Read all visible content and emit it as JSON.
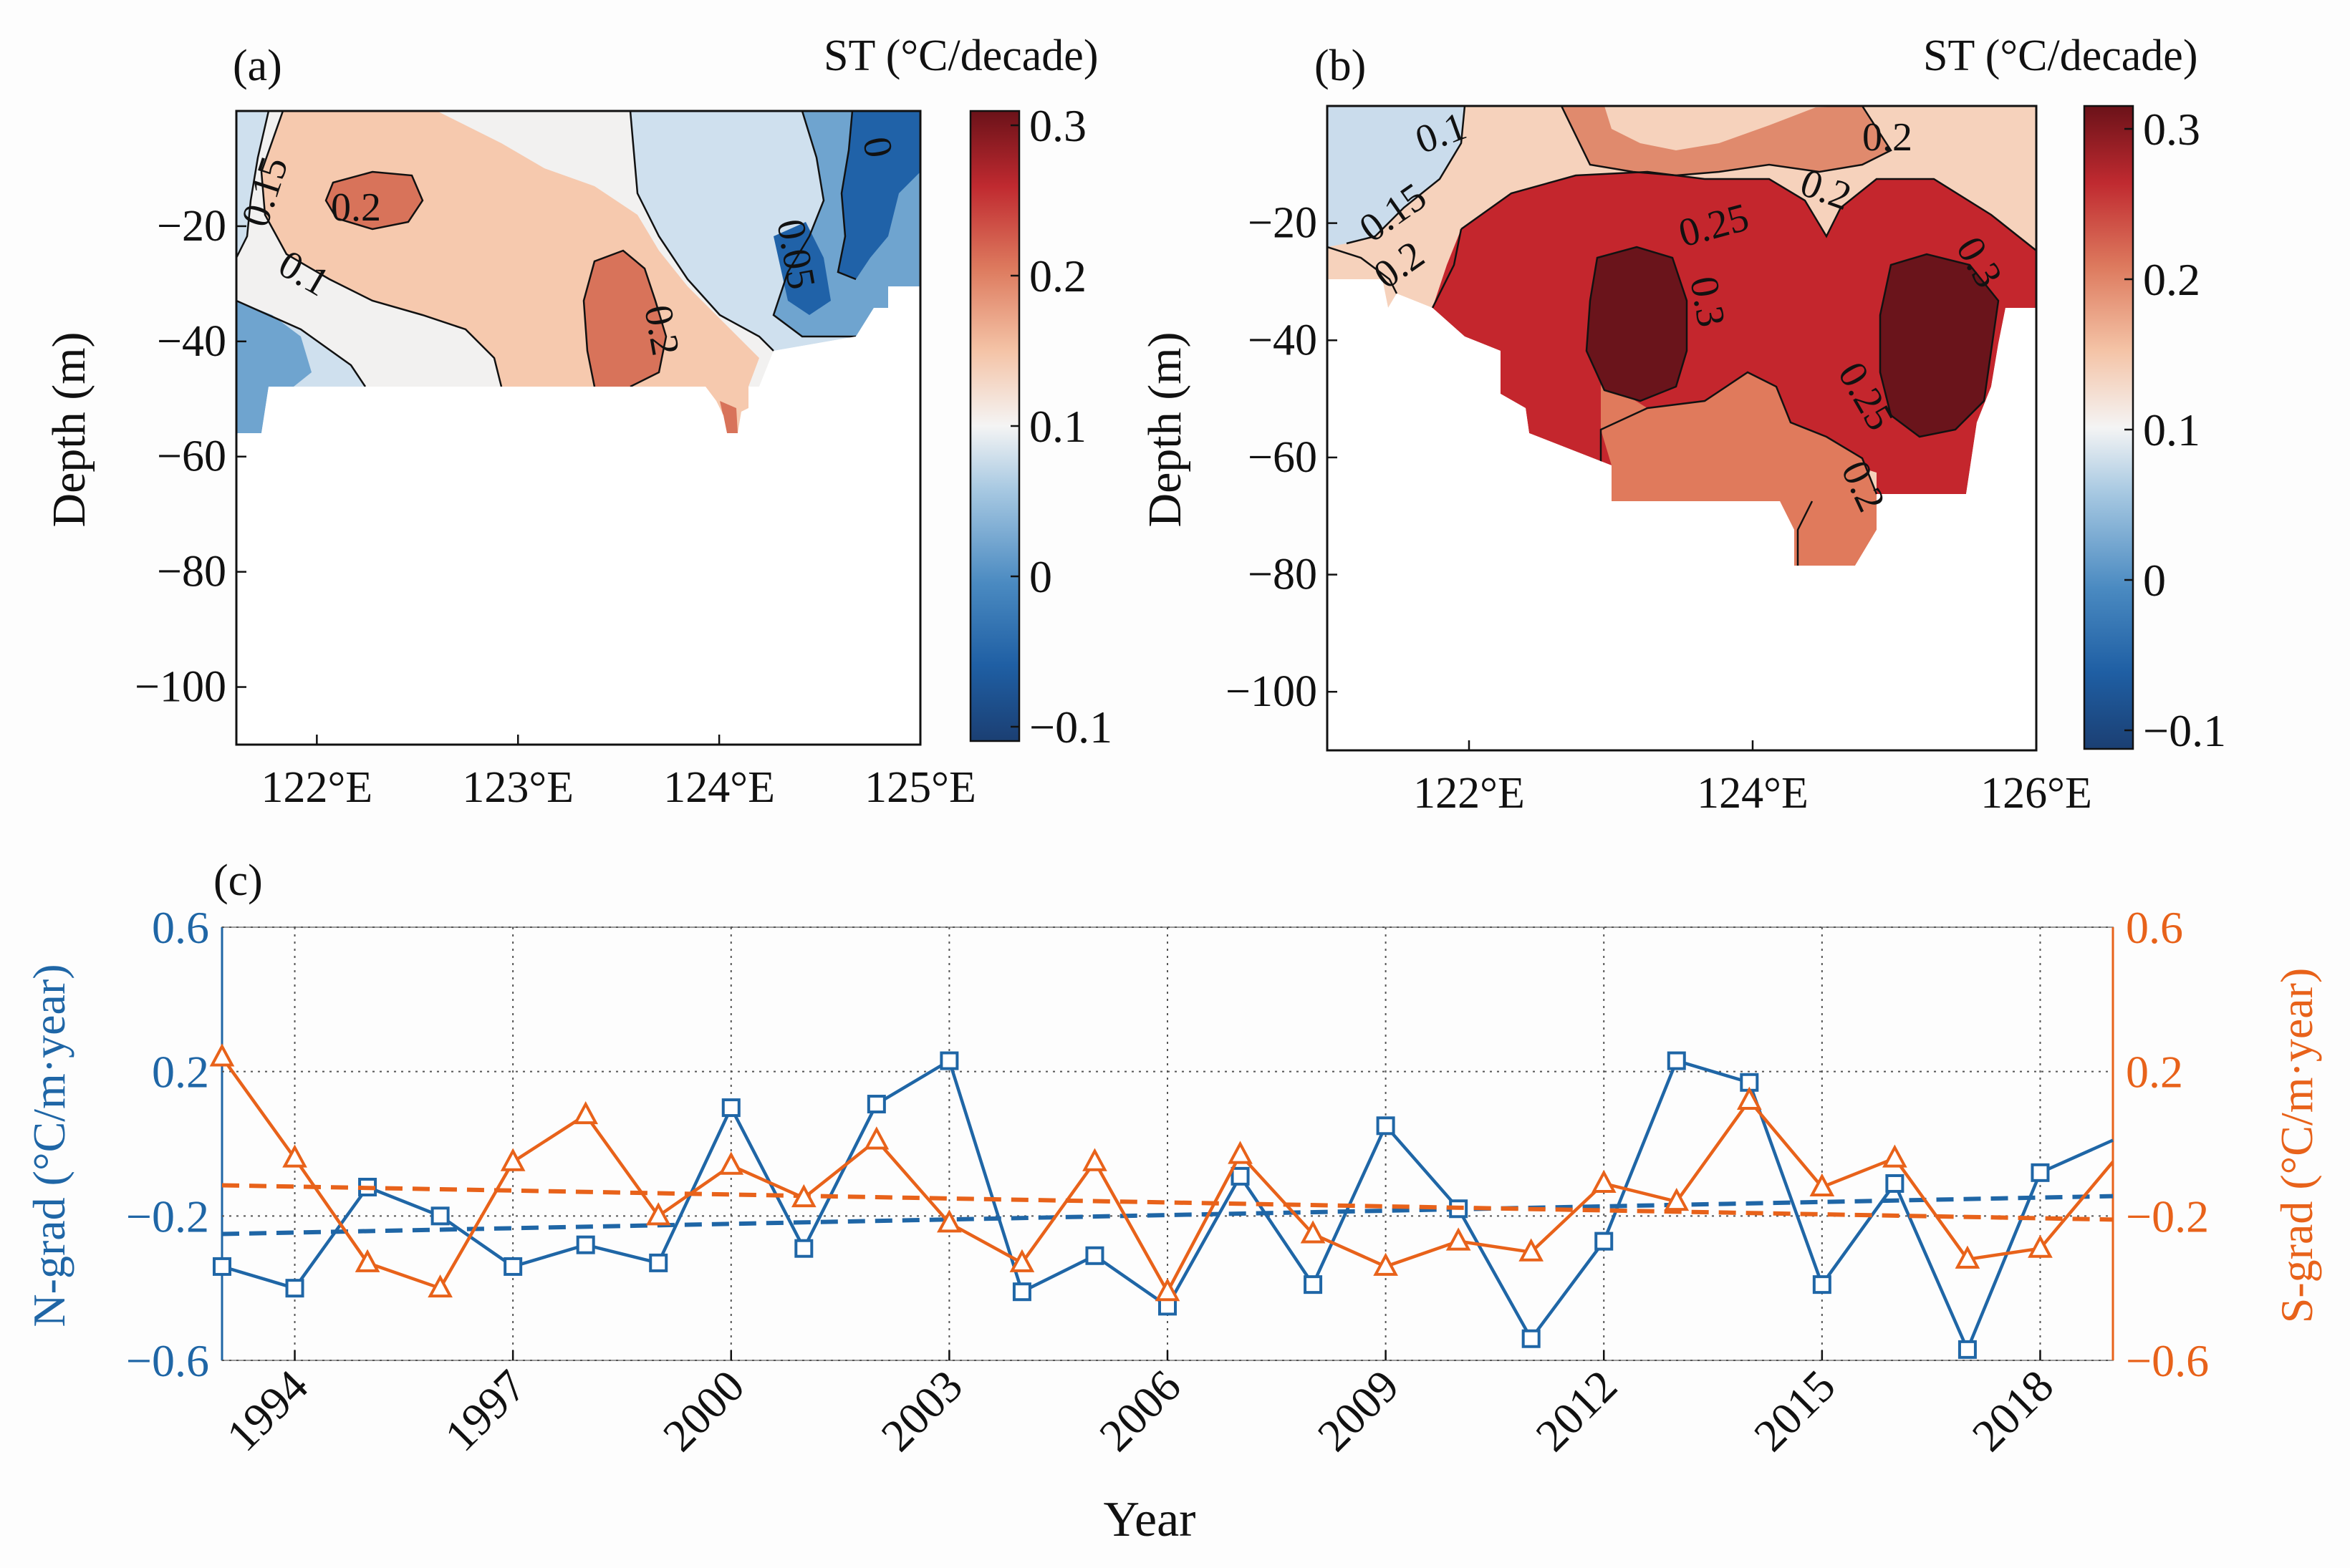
{
  "chart_data": [
    {
      "type": "heatmap",
      "panel_label": "(a)",
      "colorbar_label": "ST (°C/decade)",
      "colorbar_ticks": [
        "0.3",
        "0.2",
        "0.1",
        "0",
        "−0.1"
      ],
      "colorbar_range": [
        -0.1,
        0.3
      ],
      "ylabel": "Depth (m)",
      "ylim": [
        -110,
        0
      ],
      "yticks": [
        {
          "v": -20,
          "label": "−20"
        },
        {
          "v": -40,
          "label": "−40"
        },
        {
          "v": -60,
          "label": "−60"
        },
        {
          "v": -80,
          "label": "−80"
        },
        {
          "v": -100,
          "label": "−100"
        }
      ],
      "xlim": [
        121.6,
        125.0
      ],
      "xticks": [
        {
          "v": 122,
          "label": "122°E"
        },
        {
          "v": 123,
          "label": "123°E"
        },
        {
          "v": 124,
          "label": "124°E"
        },
        {
          "v": 125,
          "label": "125°E"
        }
      ],
      "contour_labels": [
        "0.15",
        "0.2",
        "0.1",
        "0.2",
        "0",
        "0.05"
      ]
    },
    {
      "type": "heatmap",
      "panel_label": "(b)",
      "colorbar_label": "ST (°C/decade)",
      "colorbar_ticks": [
        "0.3",
        "0.2",
        "0.1",
        "0",
        "−0.1"
      ],
      "colorbar_range": [
        -0.1,
        0.3
      ],
      "ylabel": "Depth (m)",
      "ylim": [
        -110,
        0
      ],
      "yticks": [
        {
          "v": -20,
          "label": "−20"
        },
        {
          "v": -40,
          "label": "−40"
        },
        {
          "v": -60,
          "label": "−60"
        },
        {
          "v": -80,
          "label": "−80"
        },
        {
          "v": -100,
          "label": "−100"
        }
      ],
      "xlim": [
        121.0,
        126.0
      ],
      "xticks": [
        {
          "v": 122,
          "label": "122°E"
        },
        {
          "v": 124,
          "label": "124°E"
        },
        {
          "v": 126,
          "label": "126°E"
        }
      ],
      "contour_labels": [
        "0.1",
        "0.15",
        "0.2",
        "0.2",
        "0.25",
        "0.2",
        "0.3",
        "0.3",
        "0.25",
        "0.2"
      ]
    },
    {
      "type": "line",
      "panel_label": "(c)",
      "xlabel": "Year",
      "ylabel_left": "N-grad (°C/m·year)",
      "ylabel_right": "S-grad (°C/m·year)",
      "xlim": [
        1993,
        2019
      ],
      "ylim": [
        -0.6,
        0.6
      ],
      "x_ticks": [
        "1994",
        "1997",
        "2000",
        "2003",
        "2006",
        "2009",
        "2012",
        "2015",
        "2018"
      ],
      "y_ticks_left": [
        "0.6",
        "0.2",
        "−0.2",
        "−0.6"
      ],
      "y_ticks_right": [
        "0.6",
        "0.2",
        "−0.2",
        "−0.6"
      ],
      "grid": true,
      "x": [
        1993,
        1994,
        1995,
        1996,
        1997,
        1998,
        1999,
        2000,
        2001,
        2002,
        2003,
        2004,
        2005,
        2006,
        2007,
        2008,
        2009,
        2010,
        2011,
        2012,
        2013,
        2014,
        2015,
        2016,
        2017,
        2018,
        2019
      ],
      "series": [
        {
          "name": "N-grad",
          "color": "#1f66a6",
          "marker": "square",
          "values": [
            -0.34,
            -0.4,
            -0.12,
            -0.2,
            -0.34,
            -0.28,
            -0.33,
            0.1,
            -0.29,
            0.11,
            0.23,
            -0.41,
            -0.31,
            -0.45,
            -0.09,
            -0.39,
            0.05,
            -0.18,
            -0.54,
            -0.27,
            0.23,
            0.17,
            -0.39,
            -0.11,
            -0.57,
            -0.08,
            0.01
          ],
          "trend": [
            -0.25,
            -0.145
          ]
        },
        {
          "name": "S-grad",
          "color": "#e8621a",
          "marker": "triangle",
          "values": [
            0.24,
            -0.04,
            -0.33,
            -0.4,
            -0.05,
            0.08,
            -0.2,
            -0.06,
            -0.15,
            0.01,
            -0.22,
            -0.33,
            -0.05,
            -0.41,
            -0.03,
            -0.25,
            -0.34,
            -0.27,
            -0.3,
            -0.11,
            -0.16,
            0.12,
            -0.12,
            -0.04,
            -0.32,
            -0.29,
            -0.05
          ],
          "trend": [
            -0.115,
            -0.21
          ]
        }
      ]
    }
  ]
}
